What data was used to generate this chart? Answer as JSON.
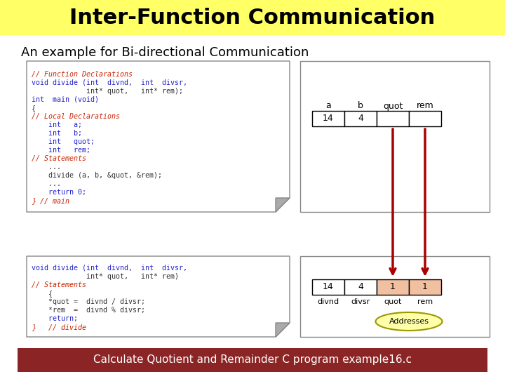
{
  "title": "Inter-Function Communication",
  "subtitle": "An example for Bi-directional Communication",
  "footer": "Calculate Quotient and Remainder C program example16.c",
  "title_bg": "#ffff66",
  "footer_bg": "#8b2525",
  "footer_fg": "#ffffff",
  "bg_color": "#ffffff",
  "code_top": [
    "// Function Declarations",
    "void divide (int  divnd,  int  divsr,",
    "             int* quot,   int* rem);",
    "int  main (void)",
    "{",
    "// Local Declarations",
    "    int   a;",
    "    int   b;",
    "    int   quot;",
    "    int   rem;",
    "// Statements",
    "    ...",
    "    divide (a, b, &quot, &rem);",
    "    ...",
    "    return 0;",
    "} // main"
  ],
  "code_top_colors": [
    "comment",
    "blue",
    "plain",
    "blue",
    "plain",
    "comment",
    "blue",
    "blue",
    "blue",
    "blue",
    "comment",
    "plain",
    "plain",
    "plain",
    "blue",
    "comment2"
  ],
  "code_bottom": [
    "void divide (int  divnd,  int  divsr,",
    "             int* quot,   int* rem)",
    "// Statements",
    "    {",
    "    *quot =  divnd / divsr;",
    "    *rem  =  divnd % divsr;",
    "    return;",
    "}   // divide"
  ],
  "code_bottom_colors": [
    "blue",
    "plain",
    "comment",
    "plain",
    "plain",
    "plain",
    "blue",
    "comment2"
  ],
  "top_table_headers": [
    "a",
    "b",
    "quot",
    "rem"
  ],
  "top_table_values": [
    "14",
    "4",
    "",
    ""
  ],
  "bottom_table_values": [
    "14",
    "4",
    "1",
    "1"
  ],
  "bottom_table_headers": [
    "divnd",
    "divsr",
    "quot",
    "rem"
  ],
  "bottom_value_colors": [
    "white",
    "white",
    "#f0c0a0",
    "#f0c0a0"
  ],
  "arrow_color": "#aa0000",
  "addresses_bg": "#ffffaa",
  "addresses_border": "#999900"
}
